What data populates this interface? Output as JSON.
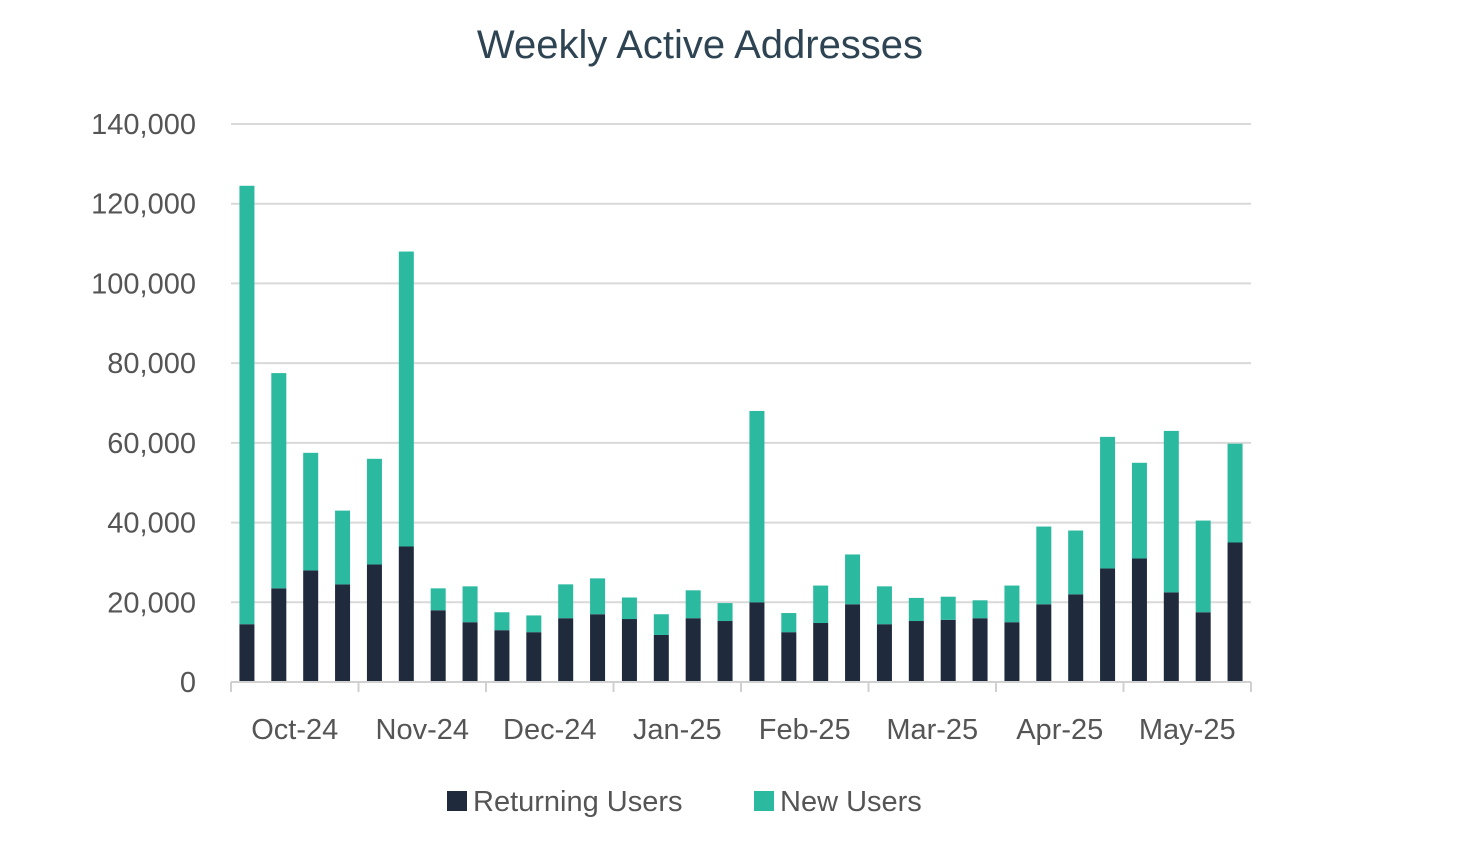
{
  "colors": {
    "returning": "#1f2a3c",
    "new": "#2bbaa0"
  },
  "chart_data": {
    "type": "bar",
    "stacked": true,
    "title": "Weekly Active Addresses",
    "xlabel": "",
    "ylabel": "",
    "ylim": [
      0,
      140000
    ],
    "yticks": [
      0,
      20000,
      40000,
      60000,
      80000,
      100000,
      120000,
      140000
    ],
    "ytick_labels": [
      "0",
      "20,000",
      "40,000",
      "60,000",
      "80,000",
      "100,000",
      "120,000",
      "140,000"
    ],
    "grid": true,
    "legend_position": "bottom",
    "month_labels": [
      {
        "label": "Oct-24",
        "start_week": 0
      },
      {
        "label": "Nov-24",
        "start_week": 4
      },
      {
        "label": "Dec-24",
        "start_week": 8
      },
      {
        "label": "Jan-25",
        "start_week": 12
      },
      {
        "label": "Feb-25",
        "start_week": 16
      },
      {
        "label": "Mar-25",
        "start_week": 20
      },
      {
        "label": "Apr-25",
        "start_week": 24
      },
      {
        "label": "May-25",
        "start_week": 28
      }
    ],
    "series": [
      {
        "name": "Returning Users",
        "values": [
          14500,
          23500,
          28000,
          24500,
          29500,
          34000,
          18000,
          15000,
          13000,
          12500,
          16000,
          17000,
          15800,
          11800,
          16000,
          15300,
          20000,
          12500,
          14800,
          19500,
          14500,
          15300,
          15600,
          16000,
          15000,
          19500,
          22000,
          28500,
          31000,
          22500,
          17500,
          35000
        ]
      },
      {
        "name": "New Users",
        "values": [
          110000,
          54000,
          29500,
          18500,
          26500,
          74000,
          5500,
          9000,
          4500,
          4200,
          8500,
          9000,
          5400,
          5200,
          7000,
          4500,
          48000,
          4800,
          9400,
          12500,
          9500,
          5800,
          5800,
          4500,
          9200,
          19500,
          16000,
          33000,
          24000,
          40500,
          23000,
          24800
        ]
      }
    ]
  }
}
